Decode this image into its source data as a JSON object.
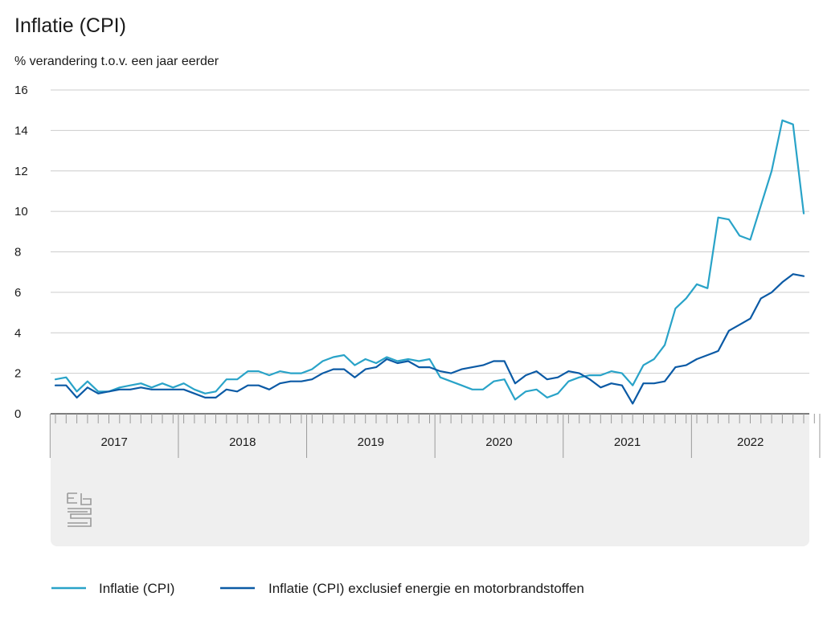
{
  "chart_data": {
    "type": "line",
    "title": "Inflatie (CPI)",
    "subtitle": "% verandering t.o.v. een jaar eerder",
    "ylim": [
      0,
      16
    ],
    "yticks": [
      0,
      2,
      4,
      6,
      8,
      10,
      12,
      14,
      16
    ],
    "grid": true,
    "legend_position": "bottom",
    "years": [
      "2017",
      "2018",
      "2019",
      "2020",
      "2021",
      "2022"
    ],
    "x_start": "2017-01",
    "x_end": "2022-09",
    "series": [
      {
        "name": "Inflatie (CPI)",
        "color": "#29a3c8",
        "values": [
          1.7,
          1.8,
          1.1,
          1.6,
          1.1,
          1.1,
          1.3,
          1.4,
          1.5,
          1.3,
          1.5,
          1.3,
          1.5,
          1.2,
          1.0,
          1.1,
          1.7,
          1.7,
          2.1,
          2.1,
          1.9,
          2.1,
          2.0,
          2.0,
          2.2,
          2.6,
          2.8,
          2.9,
          2.4,
          2.7,
          2.5,
          2.8,
          2.6,
          2.7,
          2.6,
          2.7,
          1.8,
          1.6,
          1.4,
          1.2,
          1.2,
          1.6,
          1.7,
          0.7,
          1.1,
          1.2,
          0.8,
          1.0,
          1.6,
          1.8,
          1.9,
          1.9,
          2.1,
          2.0,
          1.4,
          2.4,
          2.7,
          3.4,
          5.2,
          5.7,
          6.4,
          6.2,
          9.7,
          9.6,
          8.8,
          8.6,
          10.3,
          12.0,
          14.5,
          14.3,
          9.9
        ]
      },
      {
        "name": "Inflatie (CPI) exclusief energie en motorbrandstoffen",
        "color": "#0b5aa5",
        "values": [
          1.4,
          1.4,
          0.8,
          1.3,
          1.0,
          1.1,
          1.2,
          1.2,
          1.3,
          1.2,
          1.2,
          1.2,
          1.2,
          1.0,
          0.8,
          0.8,
          1.2,
          1.1,
          1.4,
          1.4,
          1.2,
          1.5,
          1.6,
          1.6,
          1.7,
          2.0,
          2.2,
          2.2,
          1.8,
          2.2,
          2.3,
          2.7,
          2.5,
          2.6,
          2.3,
          2.3,
          2.1,
          2.0,
          2.2,
          2.3,
          2.4,
          2.6,
          2.6,
          1.5,
          1.9,
          2.1,
          1.7,
          1.8,
          2.1,
          2.0,
          1.7,
          1.3,
          1.5,
          1.4,
          0.5,
          1.5,
          1.5,
          1.6,
          2.3,
          2.4,
          2.7,
          2.9,
          3.1,
          4.1,
          4.4,
          4.7,
          5.7,
          6.0,
          6.5,
          6.9,
          6.8
        ]
      }
    ]
  }
}
